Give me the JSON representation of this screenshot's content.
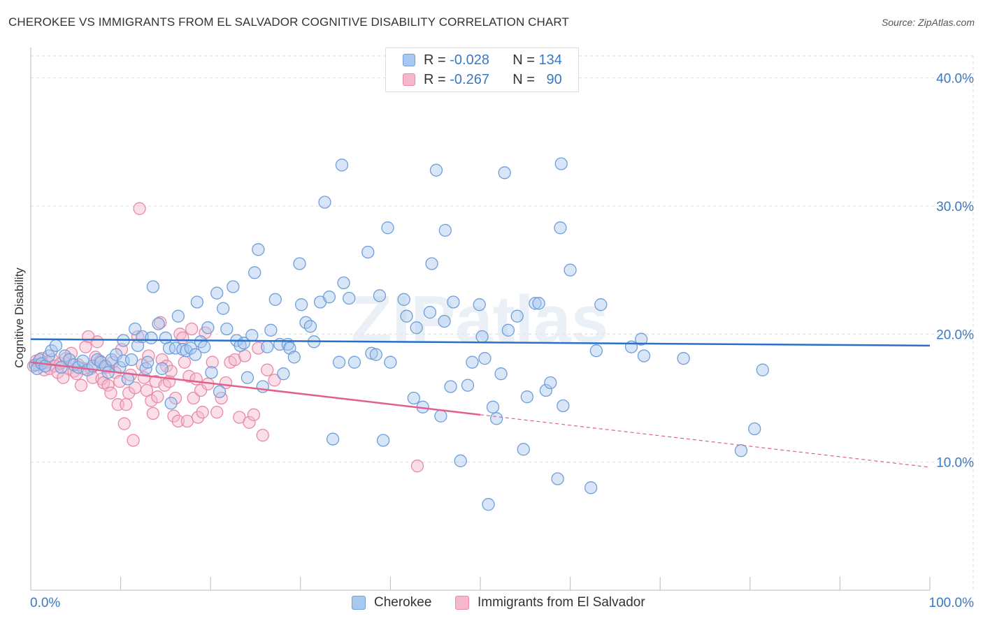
{
  "title": "CHEROKEE VS IMMIGRANTS FROM EL SALVADOR COGNITIVE DISABILITY CORRELATION CHART",
  "source": "Source: ZipAtlas.com",
  "watermark": "ZIPatlas",
  "colors": {
    "cherokee_fill": "#a9c8ef",
    "cherokee_stroke": "#6f9fd8",
    "cherokee_line": "#2a6fc9",
    "salvador_fill": "#f5b8cb",
    "salvador_stroke": "#e98aa8",
    "salvador_line": "#e0608e",
    "axis_text": "#3a78c3",
    "grid": "#dddddd"
  },
  "legend": {
    "rows": [
      {
        "r_label": "R = ",
        "r_value": "-0.028",
        "n_label": "N = ",
        "n_value": "134"
      },
      {
        "r_label": "R = ",
        "r_value": "-0.267",
        "n_label": "N = ",
        "n_value": "90"
      }
    ]
  },
  "bottom_legend": [
    "Cherokee",
    "Immigrants from El Salvador"
  ],
  "chart_data": {
    "type": "scatter",
    "title": "CHEROKEE VS IMMIGRANTS FROM EL SALVADOR COGNITIVE DISABILITY CORRELATION CHART",
    "xlabel": "",
    "ylabel": "Cognitive Disability",
    "xlim": [
      0,
      100
    ],
    "ylim": [
      0,
      42
    ],
    "x_tick_labels": [
      "0.0%",
      "100.0%"
    ],
    "y_ticks": [
      10,
      20,
      30,
      40
    ],
    "y_tick_labels": [
      "10.0%",
      "20.0%",
      "30.0%",
      "40.0%"
    ],
    "grid": true,
    "legend_position": "top-center",
    "series": [
      {
        "name": "Cherokee",
        "R": -0.028,
        "N": 134,
        "trend": {
          "x": [
            0,
            100
          ],
          "y": [
            19.6,
            19.1
          ]
        },
        "points": [
          [
            0.5,
            17.6
          ],
          [
            0.7,
            17.3
          ],
          [
            1.0,
            18.0
          ],
          [
            1.2,
            17.7
          ],
          [
            1.6,
            17.5
          ],
          [
            2.0,
            18.3
          ],
          [
            2.3,
            18.7
          ],
          [
            2.8,
            19.1
          ],
          [
            3.4,
            17.4
          ],
          [
            3.8,
            18.3
          ],
          [
            4.3,
            18.0
          ],
          [
            4.8,
            17.6
          ],
          [
            5.3,
            17.4
          ],
          [
            5.8,
            17.9
          ],
          [
            6.3,
            17.2
          ],
          [
            6.9,
            17.5
          ],
          [
            7.4,
            18.0
          ],
          [
            7.8,
            17.8
          ],
          [
            8.3,
            17.5
          ],
          [
            8.6,
            17.0
          ],
          [
            9.0,
            18.0
          ],
          [
            9.5,
            18.4
          ],
          [
            9.9,
            17.4
          ],
          [
            10.3,
            17.9
          ],
          [
            10.3,
            19.5
          ],
          [
            10.8,
            16.5
          ],
          [
            11.2,
            18.0
          ],
          [
            11.6,
            20.4
          ],
          [
            11.9,
            19.1
          ],
          [
            12.4,
            19.8
          ],
          [
            12.8,
            17.3
          ],
          [
            13.0,
            17.8
          ],
          [
            13.4,
            19.7
          ],
          [
            13.6,
            23.7
          ],
          [
            14.2,
            20.8
          ],
          [
            14.6,
            17.3
          ],
          [
            15.0,
            19.7
          ],
          [
            15.4,
            18.9
          ],
          [
            15.6,
            14.6
          ],
          [
            16.1,
            18.9
          ],
          [
            16.4,
            21.4
          ],
          [
            16.9,
            18.8
          ],
          [
            17.3,
            18.7
          ],
          [
            17.8,
            18.9
          ],
          [
            18.3,
            18.4
          ],
          [
            18.5,
            22.5
          ],
          [
            18.9,
            19.4
          ],
          [
            19.3,
            19.0
          ],
          [
            19.7,
            20.5
          ],
          [
            20.1,
            17.0
          ],
          [
            20.7,
            23.2
          ],
          [
            21.0,
            15.5
          ],
          [
            21.4,
            22.0
          ],
          [
            21.8,
            20.4
          ],
          [
            22.5,
            23.7
          ],
          [
            22.9,
            19.5
          ],
          [
            23.3,
            19.1
          ],
          [
            23.7,
            19.3
          ],
          [
            24.1,
            16.6
          ],
          [
            24.6,
            19.9
          ],
          [
            24.9,
            24.8
          ],
          [
            25.3,
            26.6
          ],
          [
            25.8,
            15.9
          ],
          [
            26.3,
            19.0
          ],
          [
            26.7,
            20.3
          ],
          [
            27.2,
            22.7
          ],
          [
            27.7,
            19.2
          ],
          [
            28.1,
            16.9
          ],
          [
            28.6,
            19.2
          ],
          [
            28.8,
            18.9
          ],
          [
            29.3,
            18.2
          ],
          [
            29.9,
            25.5
          ],
          [
            30.1,
            22.3
          ],
          [
            30.6,
            20.9
          ],
          [
            31.1,
            20.6
          ],
          [
            31.5,
            19.4
          ],
          [
            32.2,
            22.5
          ],
          [
            32.7,
            30.3
          ],
          [
            33.2,
            22.9
          ],
          [
            33.6,
            11.8
          ],
          [
            34.3,
            17.8
          ],
          [
            34.6,
            33.2
          ],
          [
            34.8,
            24.0
          ],
          [
            35.4,
            22.8
          ],
          [
            36.0,
            17.8
          ],
          [
            37.5,
            26.4
          ],
          [
            37.9,
            18.5
          ],
          [
            38.4,
            18.4
          ],
          [
            38.8,
            23.0
          ],
          [
            39.2,
            11.7
          ],
          [
            39.7,
            28.3
          ],
          [
            40.0,
            17.8
          ],
          [
            41.5,
            22.7
          ],
          [
            41.8,
            21.4
          ],
          [
            42.6,
            15.0
          ],
          [
            42.9,
            20.5
          ],
          [
            43.6,
            14.3
          ],
          [
            44.4,
            21.7
          ],
          [
            44.6,
            25.5
          ],
          [
            45.1,
            32.8
          ],
          [
            45.6,
            13.6
          ],
          [
            46.0,
            21.0
          ],
          [
            46.1,
            28.1
          ],
          [
            46.7,
            15.9
          ],
          [
            47.0,
            22.5
          ],
          [
            47.8,
            10.1
          ],
          [
            48.6,
            16.0
          ],
          [
            49.1,
            17.8
          ],
          [
            49.9,
            22.3
          ],
          [
            50.2,
            19.8
          ],
          [
            50.5,
            18.1
          ],
          [
            50.9,
            6.7
          ],
          [
            51.4,
            14.3
          ],
          [
            51.8,
            13.4
          ],
          [
            52.3,
            16.9
          ],
          [
            52.7,
            32.6
          ],
          [
            53.1,
            20.3
          ],
          [
            54.1,
            21.4
          ],
          [
            54.8,
            11.0
          ],
          [
            55.2,
            15.1
          ],
          [
            56.1,
            22.4
          ],
          [
            56.5,
            22.4
          ],
          [
            57.3,
            15.6
          ],
          [
            57.8,
            16.2
          ],
          [
            58.6,
            8.7
          ],
          [
            59.0,
            33.3
          ],
          [
            58.9,
            28.3
          ],
          [
            59.2,
            14.4
          ],
          [
            60.0,
            25.0
          ],
          [
            62.3,
            8.0
          ],
          [
            62.9,
            18.7
          ],
          [
            63.4,
            22.3
          ],
          [
            66.8,
            19.0
          ],
          [
            67.9,
            19.6
          ],
          [
            68.2,
            18.3
          ],
          [
            72.6,
            18.1
          ],
          [
            79.0,
            10.9
          ],
          [
            80.5,
            12.6
          ],
          [
            81.4,
            17.2
          ]
        ]
      },
      {
        "name": "Immigrants from El Salvador",
        "R": -0.267,
        "N": 90,
        "trend": {
          "x": [
            0,
            100
          ],
          "y": [
            17.8,
            9.6
          ]
        },
        "trend_solid_until": 50,
        "points": [
          [
            0.3,
            17.5
          ],
          [
            0.6,
            17.9
          ],
          [
            0.9,
            17.6
          ],
          [
            1.2,
            18.1
          ],
          [
            1.5,
            17.2
          ],
          [
            1.8,
            17.8
          ],
          [
            2.1,
            17.3
          ],
          [
            2.4,
            18.0
          ],
          [
            2.7,
            17.5
          ],
          [
            3.0,
            17.0
          ],
          [
            3.3,
            17.7
          ],
          [
            3.6,
            16.6
          ],
          [
            3.9,
            18.1
          ],
          [
            4.2,
            17.3
          ],
          [
            4.5,
            18.5
          ],
          [
            4.8,
            17.1
          ],
          [
            5.1,
            16.9
          ],
          [
            5.3,
            17.6
          ],
          [
            5.6,
            16.0
          ],
          [
            5.9,
            17.3
          ],
          [
            6.1,
            19.0
          ],
          [
            6.4,
            19.8
          ],
          [
            6.7,
            17.3
          ],
          [
            6.9,
            16.6
          ],
          [
            7.2,
            18.2
          ],
          [
            7.4,
            19.4
          ],
          [
            7.7,
            17.9
          ],
          [
            7.9,
            16.5
          ],
          [
            8.1,
            16.2
          ],
          [
            8.4,
            17.4
          ],
          [
            8.6,
            16.0
          ],
          [
            8.9,
            15.4
          ],
          [
            9.1,
            17.8
          ],
          [
            9.4,
            17.0
          ],
          [
            9.7,
            14.5
          ],
          [
            9.9,
            16.3
          ],
          [
            10.1,
            18.8
          ],
          [
            10.4,
            13.0
          ],
          [
            10.6,
            14.5
          ],
          [
            10.9,
            15.4
          ],
          [
            11.1,
            16.8
          ],
          [
            11.4,
            11.7
          ],
          [
            11.6,
            15.8
          ],
          [
            11.9,
            19.8
          ],
          [
            12.1,
            29.8
          ],
          [
            12.4,
            17.6
          ],
          [
            12.6,
            16.6
          ],
          [
            12.9,
            15.6
          ],
          [
            13.1,
            18.3
          ],
          [
            13.4,
            14.8
          ],
          [
            13.6,
            13.8
          ],
          [
            13.9,
            16.3
          ],
          [
            14.1,
            15.1
          ],
          [
            14.4,
            20.9
          ],
          [
            14.6,
            18.0
          ],
          [
            14.9,
            16.0
          ],
          [
            15.1,
            17.5
          ],
          [
            15.4,
            16.3
          ],
          [
            15.6,
            17.1
          ],
          [
            15.9,
            13.6
          ],
          [
            16.1,
            15.0
          ],
          [
            16.4,
            13.2
          ],
          [
            16.6,
            20.0
          ],
          [
            16.9,
            19.7
          ],
          [
            17.1,
            17.8
          ],
          [
            17.4,
            13.2
          ],
          [
            17.6,
            16.7
          ],
          [
            17.9,
            20.4
          ],
          [
            18.1,
            15.0
          ],
          [
            18.4,
            16.5
          ],
          [
            18.6,
            13.5
          ],
          [
            18.9,
            15.6
          ],
          [
            19.1,
            13.9
          ],
          [
            19.4,
            20.1
          ],
          [
            19.7,
            16.1
          ],
          [
            20.2,
            17.8
          ],
          [
            20.7,
            13.9
          ],
          [
            21.2,
            15.0
          ],
          [
            21.7,
            16.2
          ],
          [
            22.2,
            17.8
          ],
          [
            22.7,
            18.0
          ],
          [
            23.2,
            13.5
          ],
          [
            23.8,
            18.3
          ],
          [
            24.3,
            13.1
          ],
          [
            24.8,
            13.7
          ],
          [
            25.3,
            18.9
          ],
          [
            25.8,
            12.1
          ],
          [
            26.3,
            17.2
          ],
          [
            27.1,
            16.4
          ],
          [
            43.0,
            9.7
          ]
        ]
      }
    ]
  }
}
